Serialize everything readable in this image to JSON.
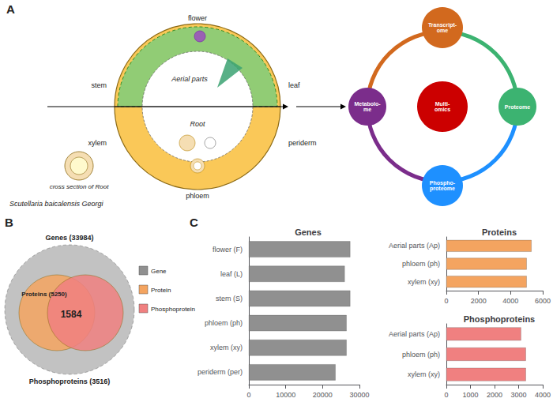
{
  "chart_data": [
    {
      "type": "diagram",
      "title": "A",
      "annotations": [
        "Scutellaria baicalensis Georgi",
        "Aerial parts",
        "Root",
        "flower",
        "stem",
        "leaf",
        "xylem",
        "periderm",
        "phloem",
        "cross section of Root"
      ],
      "categories": [
        "Transcript-\nome",
        "Proteome",
        "Phospho-\nproteome",
        "Metabolo-\nme",
        "Multi-\nomics"
      ],
      "colors": [
        "#D2691E",
        "#3CB371",
        "#1E90FF",
        "#7B2D8B",
        "#CC0000"
      ]
    },
    {
      "type": "venn",
      "title": "B",
      "categories": [
        "Genes (33984)",
        "Proteins (5250)",
        "Phosphoproteins (3516)"
      ],
      "annotations": [
        "1584"
      ],
      "series": [
        {
          "name": "Gene",
          "color": "#909090"
        },
        {
          "name": "Protein",
          "color": "#F4A460"
        },
        {
          "name": "Phosphoprotein",
          "color": "#F08080"
        }
      ],
      "legend": "right"
    },
    {
      "type": "bar",
      "orientation": "horizontal",
      "title": "Genes",
      "annotations": [
        "C"
      ],
      "categories": [
        "periderm (per)",
        "xylem (xy)",
        "phloem (ph)",
        "stem (S)",
        "leaf (L)",
        "flower (F)"
      ],
      "values": [
        23500,
        26500,
        26500,
        27500,
        26000,
        27500
      ],
      "color": "#909090",
      "xlim": [
        0,
        30000
      ],
      "xticks": [
        0,
        10000,
        20000,
        30000
      ],
      "grid": false
    },
    {
      "type": "bar",
      "orientation": "horizontal",
      "title": "Proteins",
      "categories": [
        "xylem (xy)",
        "phloem (ph)",
        "Aerial parts (Ap)"
      ],
      "values": [
        5000,
        5000,
        5300
      ],
      "color": "#F4A460",
      "xlim": [
        0,
        6000
      ],
      "xticks": [
        0,
        2000,
        4000,
        6000
      ],
      "grid": false
    },
    {
      "type": "bar",
      "orientation": "horizontal",
      "title": "Phosphoproteins",
      "categories": [
        "xylem (xy)",
        "phloem (ph)",
        "Aerial parts (Ap)"
      ],
      "values": [
        3300,
        3300,
        3100
      ],
      "color": "#F08080",
      "xlim": [
        0,
        4000
      ],
      "xticks": [
        0,
        1000,
        2000,
        3000,
        4000
      ],
      "grid": false
    }
  ]
}
